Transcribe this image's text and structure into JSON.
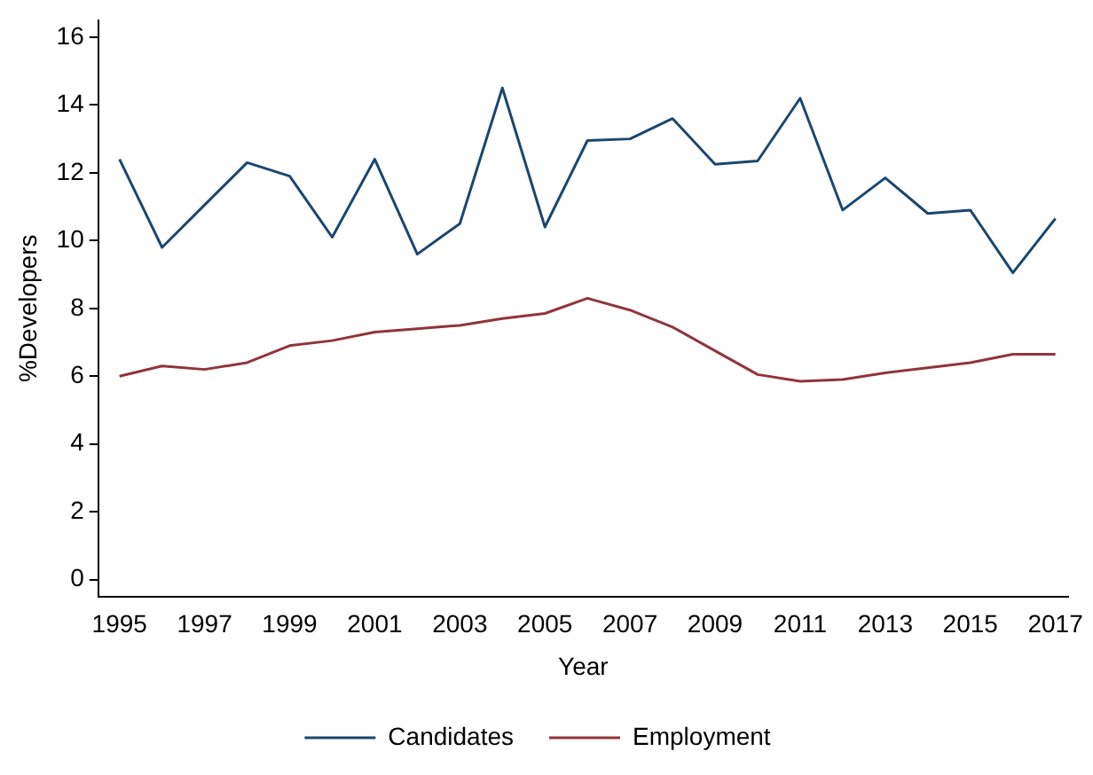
{
  "chart_data": {
    "type": "line",
    "xlabel": "Year",
    "ylabel": "%Developers",
    "x": [
      1995,
      1996,
      1997,
      1998,
      1999,
      2000,
      2001,
      2002,
      2003,
      2004,
      2005,
      2006,
      2007,
      2008,
      2009,
      2010,
      2011,
      2012,
      2013,
      2014,
      2015,
      2016,
      2017
    ],
    "series": [
      {
        "name": "Candidates",
        "color": "#1a476f",
        "values": [
          12.4,
          9.8,
          11.05,
          12.3,
          11.9,
          10.1,
          12.4,
          9.6,
          10.5,
          14.5,
          10.4,
          12.95,
          13.0,
          13.6,
          12.25,
          12.35,
          14.2,
          10.9,
          11.85,
          10.8,
          10.9,
          9.05,
          10.65
        ]
      },
      {
        "name": "Employment",
        "color": "#90353b",
        "values": [
          6.0,
          6.3,
          6.2,
          6.4,
          6.9,
          7.05,
          7.3,
          7.4,
          7.5,
          7.7,
          7.85,
          8.3,
          7.95,
          7.45,
          6.75,
          6.05,
          5.85,
          5.9,
          6.1,
          6.25,
          6.4,
          6.65,
          6.65
        ]
      }
    ],
    "xlim": [
      1994.5,
      2017.3
    ],
    "xticks": [
      1995,
      1997,
      1999,
      2001,
      2003,
      2005,
      2007,
      2009,
      2011,
      2013,
      2015,
      2017
    ],
    "ylim": [
      -0.5,
      16.5
    ],
    "yticks": [
      0,
      2,
      4,
      6,
      8,
      10,
      12,
      14,
      16
    ],
    "grid": false,
    "legend": "bottom",
    "marker": "none",
    "line_style": "solid"
  }
}
